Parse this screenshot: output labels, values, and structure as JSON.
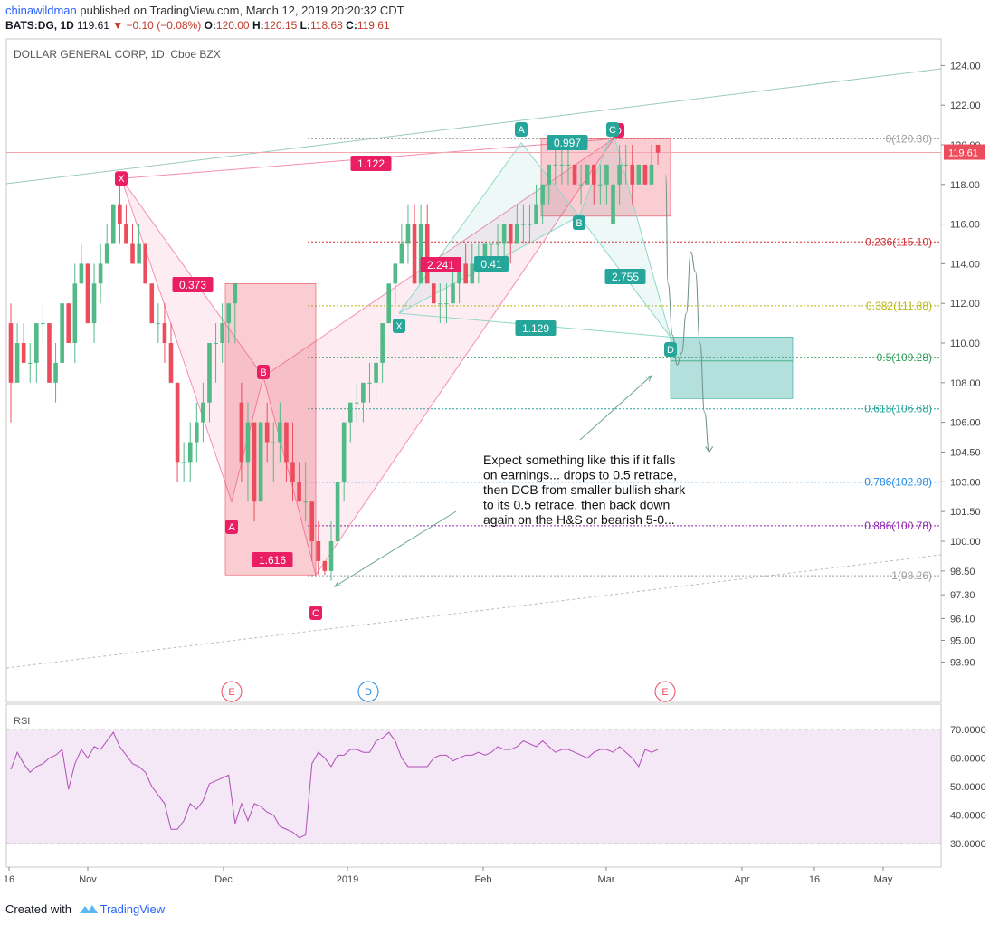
{
  "header": {
    "author": "chinawildman",
    "published": "published on TradingView.com, March 12, 2019 20:20:32 CDT",
    "symbol": "BATS:DG, 1D",
    "last": "119.61",
    "change": "▼ −0.10 (−0.08%)",
    "o_label": "O:",
    "o": "120.00",
    "h_label": "H:",
    "h": "120.15",
    "l_label": "L:",
    "l": "118.68",
    "c_label": "C:",
    "c": "119.61"
  },
  "chart_title": "DOLLAR GENERAL CORP, 1D, Cboe BZX",
  "footer": {
    "created": "Created with",
    "brand": "TradingView"
  },
  "colors": {
    "up": "#53b987",
    "down": "#eb4d5c",
    "pink": "#e91e63",
    "teal": "#26a69a",
    "grid": "#e8e8e8"
  },
  "chart_data": {
    "type": "candlestick",
    "title": "DOLLAR GENERAL CORP, 1D, Cboe BZX",
    "y_ticks": [
      "124.00",
      "122.00",
      "120.00",
      "118.00",
      "116.00",
      "114.00",
      "112.00",
      "110.00",
      "108.00",
      "106.00",
      "104.50",
      "103.00",
      "101.50",
      "100.00",
      "98.50",
      "97.30",
      "96.10",
      "95.00",
      "93.90"
    ],
    "x_ticks": [
      "16",
      "Nov",
      "Dec",
      "2019",
      "Feb",
      "Mar",
      "Apr",
      "16",
      "May"
    ],
    "last_price_label": "119.61",
    "candles": [
      [
        111,
        112,
        106,
        108
      ],
      [
        108,
        111,
        108,
        110
      ],
      [
        110,
        111,
        109,
        109
      ],
      [
        109,
        110,
        108,
        109
      ],
      [
        109,
        111,
        108,
        111
      ],
      [
        111,
        112,
        110,
        111
      ],
      [
        111,
        111,
        108,
        108
      ],
      [
        108,
        110,
        107,
        109
      ],
      [
        109,
        112,
        109,
        112
      ],
      [
        112,
        112,
        110,
        110
      ],
      [
        110,
        114,
        109,
        113
      ],
      [
        113,
        115,
        113,
        114
      ],
      [
        114,
        114,
        111,
        111
      ],
      [
        111,
        114,
        110,
        113
      ],
      [
        113,
        115,
        112,
        114
      ],
      [
        114,
        116,
        114,
        115
      ],
      [
        115,
        117,
        115,
        117
      ],
      [
        117,
        118,
        115,
        116
      ],
      [
        116,
        117,
        115,
        115
      ],
      [
        115,
        116,
        114,
        114
      ],
      [
        114,
        116,
        114,
        115
      ],
      [
        115,
        115,
        113,
        113
      ],
      [
        113,
        113,
        111,
        111
      ],
      [
        111,
        112,
        110,
        111
      ],
      [
        111,
        112,
        109,
        110
      ],
      [
        110,
        111,
        108,
        108
      ],
      [
        108,
        108,
        103,
        104
      ],
      [
        104,
        105,
        103,
        104
      ],
      [
        104,
        106,
        103,
        105
      ],
      [
        105,
        107,
        104,
        106
      ],
      [
        106,
        108,
        105,
        107
      ],
      [
        107,
        110,
        106,
        110
      ],
      [
        110,
        111,
        108,
        110
      ],
      [
        110,
        112,
        109,
        111
      ],
      [
        111,
        112,
        110,
        112
      ],
      [
        112,
        113,
        110,
        113
      ],
      [
        107,
        108,
        103,
        104
      ],
      [
        104,
        107,
        102,
        106
      ],
      [
        106,
        106,
        101,
        102
      ],
      [
        102,
        106,
        102,
        106
      ],
      [
        106,
        107,
        104,
        105
      ],
      [
        105,
        106,
        103,
        105
      ],
      [
        105,
        107,
        104,
        106
      ],
      [
        106,
        106,
        103,
        104
      ],
      [
        104,
        106,
        102,
        103
      ],
      [
        103,
        104,
        102,
        102
      ],
      [
        102,
        104,
        101,
        102
      ],
      [
        102,
        102,
        99,
        100
      ],
      [
        100,
        101,
        98.3,
        99
      ],
      [
        99,
        99,
        98.3,
        98.5
      ],
      [
        98.5,
        101,
        98,
        100
      ],
      [
        100,
        103,
        100,
        103
      ],
      [
        103,
        106,
        102,
        106
      ],
      [
        106,
        107,
        105,
        107
      ],
      [
        107,
        108,
        106,
        107
      ],
      [
        107,
        108,
        106,
        108
      ],
      [
        108,
        109,
        107,
        108
      ],
      [
        108,
        110,
        107,
        109
      ],
      [
        109,
        111,
        108,
        111
      ],
      [
        111,
        113,
        111,
        113
      ],
      [
        113,
        114,
        112,
        114
      ],
      [
        114,
        116,
        114,
        115
      ],
      [
        115,
        117,
        114,
        116
      ],
      [
        116,
        117,
        113,
        113
      ],
      [
        113,
        117,
        113,
        116
      ],
      [
        116,
        117,
        113,
        113
      ],
      [
        113,
        113,
        112,
        112
      ],
      [
        112,
        113,
        111,
        112
      ],
      [
        112,
        113,
        111,
        112
      ],
      [
        112,
        114,
        112,
        113
      ],
      [
        113,
        114,
        112,
        114
      ],
      [
        114,
        115,
        113,
        113
      ],
      [
        113,
        115,
        113,
        114
      ],
      [
        114,
        115,
        113,
        114
      ],
      [
        114,
        115,
        114,
        115
      ],
      [
        115,
        115,
        114,
        115
      ],
      [
        115,
        116,
        114,
        115
      ],
      [
        115,
        116,
        114,
        116
      ],
      [
        116,
        116,
        114,
        115
      ],
      [
        115,
        117,
        115,
        116
      ],
      [
        116,
        117,
        115,
        116
      ],
      [
        116,
        117,
        115,
        116
      ],
      [
        116,
        118,
        116,
        117
      ],
      [
        117,
        118,
        116,
        118
      ],
      [
        118,
        119,
        117,
        119
      ],
      [
        119,
        120,
        118,
        119
      ],
      [
        119,
        120,
        118,
        119
      ],
      [
        119,
        120,
        118,
        119
      ],
      [
        119,
        119,
        118,
        118
      ],
      [
        118,
        119,
        117,
        118
      ],
      [
        118,
        119,
        118,
        119
      ],
      [
        119,
        119,
        117,
        118
      ],
      [
        118,
        119,
        117,
        118
      ],
      [
        118,
        119,
        117,
        119
      ],
      [
        116,
        118,
        116,
        118
      ],
      [
        118,
        120,
        117,
        119
      ],
      [
        119,
        120,
        118,
        119
      ],
      [
        119,
        120,
        117,
        118
      ],
      [
        118,
        119,
        118,
        119
      ],
      [
        119,
        119,
        118,
        118
      ],
      [
        118,
        120,
        118,
        119
      ],
      [
        120,
        120,
        119,
        119.6
      ]
    ],
    "drawn_path": [
      [
        118.5,
        118.5
      ],
      [
        119,
        113
      ],
      [
        120,
        110.4
      ],
      [
        121,
        108.9
      ],
      [
        122,
        109.5
      ],
      [
        123,
        111.5
      ],
      [
        124,
        114.6
      ],
      [
        125,
        113.6
      ],
      [
        126,
        110
      ],
      [
        127,
        106.5
      ],
      [
        128,
        104.5
      ]
    ],
    "fib_retracement": [
      {
        "label": "0(120.30)",
        "level": 120.3,
        "color": "#9e9e9e"
      },
      {
        "label": "0.236(115.10)",
        "level": 115.1,
        "color": "#d32f2f"
      },
      {
        "label": "0.382(111.88)",
        "level": 111.88,
        "color": "#b8b814"
      },
      {
        "label": "0.5(109.28)",
        "level": 109.28,
        "color": "#2e9e57"
      },
      {
        "label": "0.618(106.68)",
        "level": 106.68,
        "color": "#26a69a"
      },
      {
        "label": "0.786(102.98)",
        "level": 102.98,
        "color": "#1e88e5"
      },
      {
        "label": "0.886(100.78)",
        "level": 100.78,
        "color": "#8e24aa"
      },
      {
        "label": "1(98.26)",
        "level": 98.26,
        "color": "#9e9e9e"
      }
    ],
    "harmonic_labels": [
      {
        "text": "X",
        "color": "pink"
      },
      {
        "text": "A",
        "color": "pink"
      },
      {
        "text": "B",
        "color": "pink"
      },
      {
        "text": "C",
        "color": "pink"
      },
      {
        "text": "D",
        "color": "pink"
      },
      {
        "text": "X",
        "color": "teal"
      },
      {
        "text": "A",
        "color": "teal"
      },
      {
        "text": "B",
        "color": "teal"
      },
      {
        "text": "C",
        "color": "teal"
      },
      {
        "text": "D",
        "color": "teal"
      }
    ],
    "ratio_labels": [
      {
        "text": "1.122",
        "color": "pink"
      },
      {
        "text": "0.373",
        "color": "pink"
      },
      {
        "text": "1.616",
        "color": "pink"
      },
      {
        "text": "2.241",
        "color": "pink"
      },
      {
        "text": "0.997",
        "color": "teal"
      },
      {
        "text": "0.41",
        "color": "teal"
      },
      {
        "text": "2.755",
        "color": "teal"
      },
      {
        "text": "1.129",
        "color": "teal"
      }
    ],
    "events": [
      {
        "text": "E",
        "color": "#eb4d5c"
      },
      {
        "text": "D",
        "color": "#1e88e5"
      },
      {
        "text": "E",
        "color": "#eb4d5c"
      }
    ],
    "annotation": [
      "Expect something like this if it falls",
      "on earnings... drops to 0.5 retrace,",
      "then DCB from smaller bullish shark",
      "to its 0.5 retrace, then back down",
      "again on the H&S or bearish 5-0..."
    ],
    "rsi": {
      "label": "RSI",
      "ticks": [
        "70.0000",
        "60.0000",
        "50.0000",
        "40.0000",
        "30.0000"
      ],
      "upper": 70,
      "lower": 30,
      "values": [
        56,
        62,
        58,
        55,
        57,
        58,
        60,
        61,
        63,
        49,
        58,
        63,
        60,
        64,
        63,
        66,
        69,
        64,
        61,
        58,
        57,
        55,
        50,
        47,
        44,
        35,
        35,
        38,
        44,
        42,
        45,
        51,
        52,
        53,
        54,
        37,
        44,
        38,
        44,
        43,
        41,
        40,
        36,
        35,
        34,
        32,
        33,
        58,
        62,
        60,
        57,
        61,
        61,
        63,
        63,
        62,
        62,
        66,
        67,
        69,
        66,
        60,
        57,
        57,
        57,
        57,
        60,
        61,
        61,
        59,
        60,
        61,
        61,
        62,
        61,
        62,
        64,
        63,
        63,
        64,
        66,
        65,
        64,
        66,
        64,
        62,
        63,
        63,
        62,
        61,
        60,
        62,
        63,
        63,
        62,
        64,
        62,
        60,
        57,
        63,
        62,
        63
      ]
    }
  }
}
